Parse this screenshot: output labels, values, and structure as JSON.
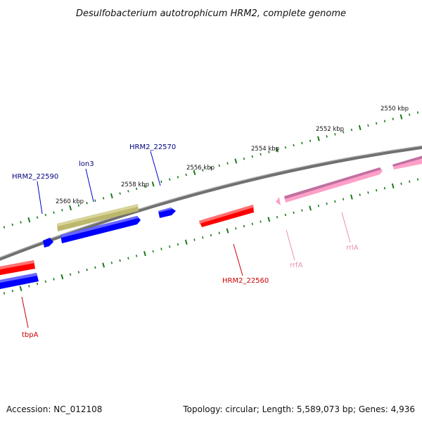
{
  "title": "Desulfobacterium autotrophicum HRM2, complete genome",
  "footer": {
    "accession": "Accession: NC_012108",
    "summary": "Topology: circular; Length: 5,589,073 bp; Genes: 4,936"
  },
  "colors": {
    "backbone": "#808080",
    "ticks": "#1a7a1a",
    "red": "#ff0000",
    "blue": "#0000ff",
    "olive": "#bdb76b",
    "pink": "#ffa0c8",
    "label_blue": "#000080",
    "label_red": "#cc0000",
    "label_pink": "#e890b0"
  },
  "kbp_labels": {
    "upper": [
      "2560 kbp",
      "2558 kbp",
      "2556 kbp",
      "2554 kbp",
      "2552 kbp",
      "2550 kbp"
    ]
  },
  "genes": {
    "hrm2_22590": "HRM2_22590",
    "lon3": "lon3",
    "hrm2_22570": "HRM2_22570",
    "hrm2_22560": "HRM2_22560",
    "rrfA": "rrfA",
    "rrlA": "rrlA",
    "tbpA": "tbpA"
  }
}
